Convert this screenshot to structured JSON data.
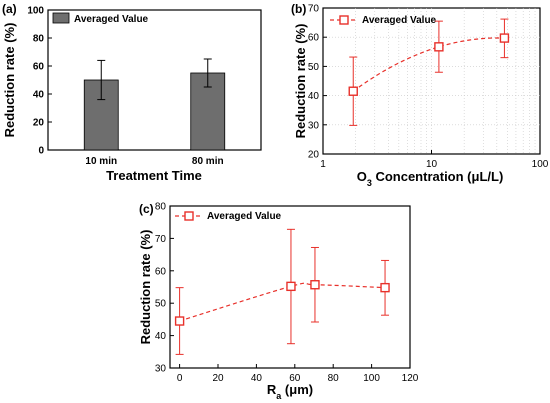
{
  "colors": {
    "bar_fill": "#6e6e6e",
    "series_red": "#e8302a",
    "axis": "#000000"
  },
  "chart_data": [
    {
      "panel": "(a)",
      "type": "bar",
      "categories": [
        "10 min",
        "80 min"
      ],
      "values": [
        50,
        55
      ],
      "errors_low": [
        36,
        45
      ],
      "errors_high": [
        64,
        65
      ],
      "series": [
        {
          "name": "Averaged Value",
          "values": [
            50,
            55
          ]
        }
      ],
      "xlabel": "Treatment Time",
      "ylabel": "Reduction rate (%)",
      "ylim": [
        0,
        100
      ],
      "yticks": [
        0,
        20,
        40,
        60,
        80,
        100
      ],
      "legend": "top-left"
    },
    {
      "panel": "(b)",
      "type": "scatter",
      "x": [
        1.9,
        11.7,
        47
      ],
      "y": [
        41.5,
        56.7,
        59.7
      ],
      "y_err_low": [
        29.8,
        48,
        53
      ],
      "y_err_high": [
        53.2,
        65.5,
        66.2
      ],
      "series": [
        {
          "name": "Averaged Value"
        }
      ],
      "xlabel_main": "O",
      "xlabel_sub": "3",
      "xlabel_rest": " Concentration (μL/L)",
      "ylabel": "Reduction rate (%)",
      "xscale": "log",
      "xlim": [
        1,
        100
      ],
      "xticks": [
        "1",
        "10",
        "100"
      ],
      "ylim": [
        20,
        70
      ],
      "yticks": [
        20,
        30,
        40,
        50,
        60,
        70
      ],
      "legend": "top-left",
      "trend": "dashed"
    },
    {
      "panel": "(c)",
      "type": "scatter",
      "x": [
        0,
        58,
        70.5,
        107
      ],
      "y": [
        44.5,
        55.2,
        55.7,
        54.8
      ],
      "y_err_low": [
        34.2,
        37.5,
        44.2,
        46.3
      ],
      "y_err_high": [
        54.8,
        72.8,
        67.2,
        63.2
      ],
      "series": [
        {
          "name": "Averaged Value"
        }
      ],
      "xlabel_main": "R",
      "xlabel_sub": "a",
      "xlabel_rest": " (μm)",
      "ylabel": "Reduction rate (%)",
      "xlim": [
        -5,
        120
      ],
      "xticks": [
        0,
        20,
        40,
        60,
        80,
        100,
        120
      ],
      "ylim": [
        30,
        80
      ],
      "yticks": [
        30,
        40,
        50,
        60,
        70,
        80
      ],
      "legend": "top-left",
      "trend": "dashed"
    }
  ]
}
